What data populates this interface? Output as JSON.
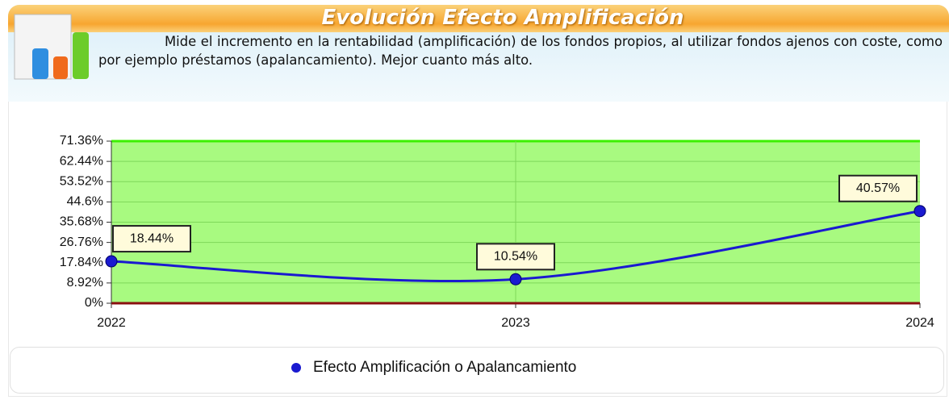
{
  "chart_data": {
    "type": "line",
    "title": "Evolución Efecto Amplificación",
    "subtitle": "Mide el incremento en la rentabilidad (amplificación) de los fondos propios, al utilizar fondos ajenos con coste, como por ejemplo préstamos (apalancamiento). Mejor cuanto más alto.",
    "categories": [
      "2022",
      "2023",
      "2024"
    ],
    "series": [
      {
        "name": "Efecto Amplificación o Apalancamiento",
        "color": "#1a1ad0",
        "values": [
          18.44,
          10.54,
          40.57
        ],
        "value_labels": [
          "18.44%",
          "10.54%",
          "40.57%"
        ]
      }
    ],
    "ylim": [
      0,
      71.36
    ],
    "yticks": [
      {
        "value": 0,
        "label": "0%"
      },
      {
        "value": 8.92,
        "label": "8.92%"
      },
      {
        "value": 17.84,
        "label": "17.84%"
      },
      {
        "value": 26.76,
        "label": "26.76%"
      },
      {
        "value": 35.68,
        "label": "35.68%"
      },
      {
        "value": 44.6,
        "label": "44.6%"
      },
      {
        "value": 53.52,
        "label": "53.52%"
      },
      {
        "value": 62.44,
        "label": "62.44%"
      },
      {
        "value": 71.36,
        "label": "71.36%"
      }
    ],
    "grid": true,
    "plot_color": "#a8fa80"
  }
}
